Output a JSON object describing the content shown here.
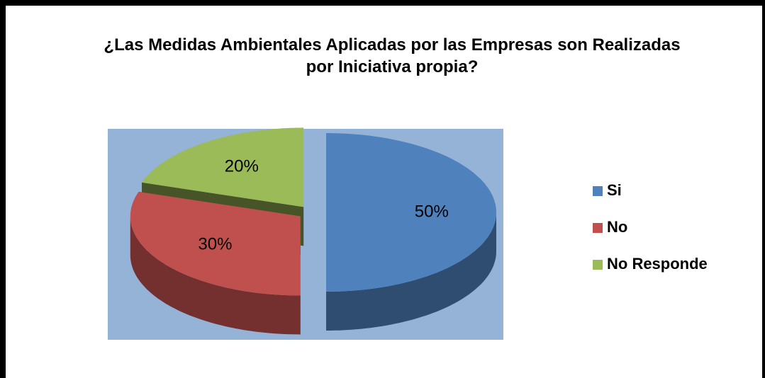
{
  "chart_data": {
    "type": "pie",
    "title": "¿Las Medidas Ambientales Aplicadas por las Empresas son Realizadas por Iniciativa propia?",
    "categories": [
      "Si",
      "No",
      "No Responde"
    ],
    "values": [
      50,
      30,
      20
    ],
    "value_labels": [
      "50%",
      "30%",
      "20%"
    ],
    "colors": [
      "#4f81bd",
      "#c0504d",
      "#9bbb59"
    ],
    "legend": "right"
  }
}
